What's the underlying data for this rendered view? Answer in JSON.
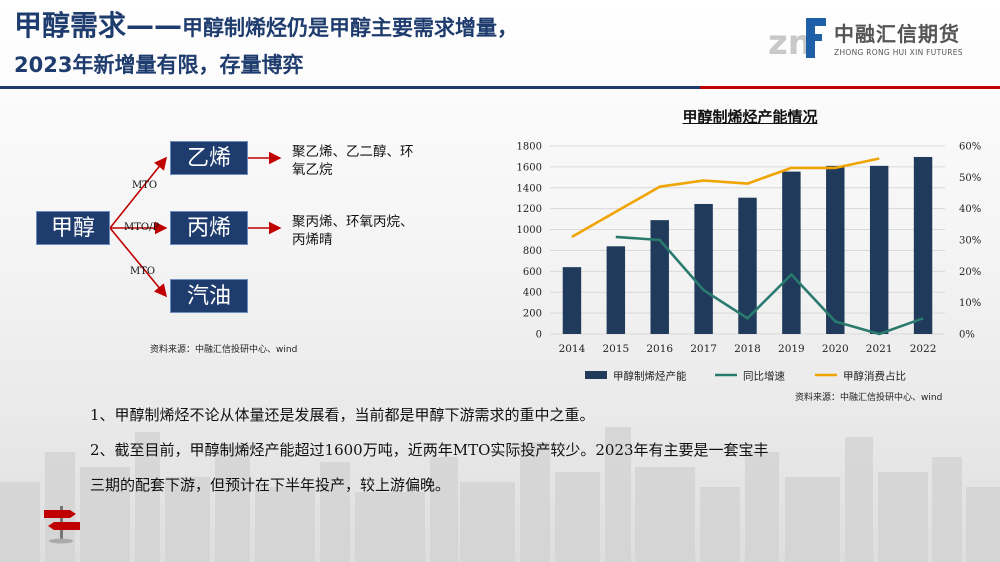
{
  "header": {
    "title_main": "甲醇需求——",
    "title_rest": "甲醇制烯烃仍是甲醇主要需求增量，",
    "title_line2": "2023年新增量有限，存量博弈"
  },
  "logo": {
    "name_cn": "中融汇信期货",
    "name_en": "ZHONG RONG HUI XIN FUTURES"
  },
  "colors": {
    "navy": "#1f3c6e",
    "red": "#c00000",
    "bar": "#1f3a5a",
    "yoy": "#2a7a6e",
    "share": "#f0a400"
  },
  "flow": {
    "source": "甲醇",
    "edge_labels": [
      "MTO",
      "MTO/P",
      "MTO"
    ],
    "targets": [
      "乙烯",
      "丙烯",
      "汽油"
    ],
    "products": [
      {
        "line1": "聚乙烯、乙二醇、环",
        "line2": "氧乙烷"
      },
      {
        "line1": "聚丙烯、环氧丙烷、",
        "line2": "丙烯晴"
      }
    ],
    "source_note": "资料来源：中融汇信投研中心、wind"
  },
  "chart_title": "甲醇制烯烃产能情况",
  "chart_source": "资料来源：中融汇信投研中心、wind",
  "chart_data": {
    "type": "bar",
    "title": "甲醇制烯烃产能情况",
    "categories": [
      "2014",
      "2015",
      "2016",
      "2017",
      "2018",
      "2019",
      "2020",
      "2021",
      "2022"
    ],
    "ylim": [
      0,
      1800
    ],
    "yticks": [
      0,
      200,
      400,
      600,
      800,
      1000,
      1200,
      1400,
      1600,
      1800
    ],
    "y2lim": [
      0,
      0.6
    ],
    "y2ticks": [
      "0%",
      "10%",
      "20%",
      "30%",
      "40%",
      "50%",
      "60%"
    ],
    "grid": true,
    "legend_position": "bottom",
    "series": [
      {
        "name": "甲醇制烯烃产能",
        "type": "bar",
        "axis": "left",
        "values": [
          640,
          840,
          1090,
          1245,
          1305,
          1555,
          1610,
          1610,
          1695
        ]
      },
      {
        "name": "同比增速",
        "type": "line",
        "axis": "right",
        "values": [
          null,
          0.31,
          0.3,
          0.14,
          0.05,
          0.19,
          0.04,
          0.0,
          0.05
        ]
      },
      {
        "name": "甲醇消费占比",
        "type": "line",
        "axis": "right",
        "values": [
          0.31,
          0.39,
          0.47,
          0.49,
          0.48,
          0.53,
          0.53,
          0.56,
          null
        ]
      }
    ]
  },
  "paragraphs": [
    "1、甲醇制烯烃不论从体量还是发展看，当前都是甲醇下游需求的重中之重。",
    "2、截至目前，甲醇制烯烃产能超过1600万吨，近两年MTO实际投产较少。2023年有主要是一套宝丰",
    "三期的配套下游，但预计在下半年投产，较上游偏晚。"
  ]
}
